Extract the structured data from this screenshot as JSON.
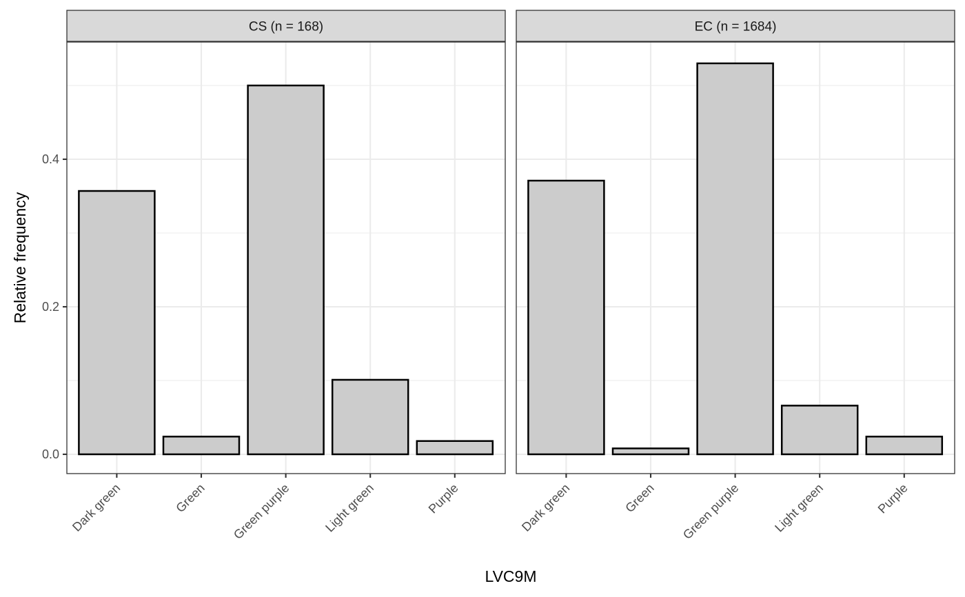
{
  "chart_data": {
    "type": "bar",
    "xlabel": "LVC9M",
    "ylabel": "Relative frequency",
    "ylim": [
      -0.025,
      0.5535
    ],
    "yticks": [
      0.0,
      0.2,
      0.4
    ],
    "ytick_labels": [
      "0.0",
      "0.2",
      "0.4"
    ],
    "yminor": [
      0.1,
      0.3,
      0.5
    ],
    "categories": [
      "Dark green",
      "Green",
      "Green purple",
      "Light green",
      "Purple"
    ],
    "grid": true,
    "legend": "none",
    "bar_fill": "#cccccc",
    "bar_outline": "#000000",
    "strip_fill": "#d9d9d9",
    "grid_color": "#ebebeb",
    "panels": [
      {
        "strip": "CS (n = 168)",
        "values": [
          0.357,
          0.024,
          0.5,
          0.101,
          0.018
        ]
      },
      {
        "strip": "EC (n = 1684)",
        "values": [
          0.371,
          0.008,
          0.53,
          0.066,
          0.024
        ]
      }
    ]
  }
}
